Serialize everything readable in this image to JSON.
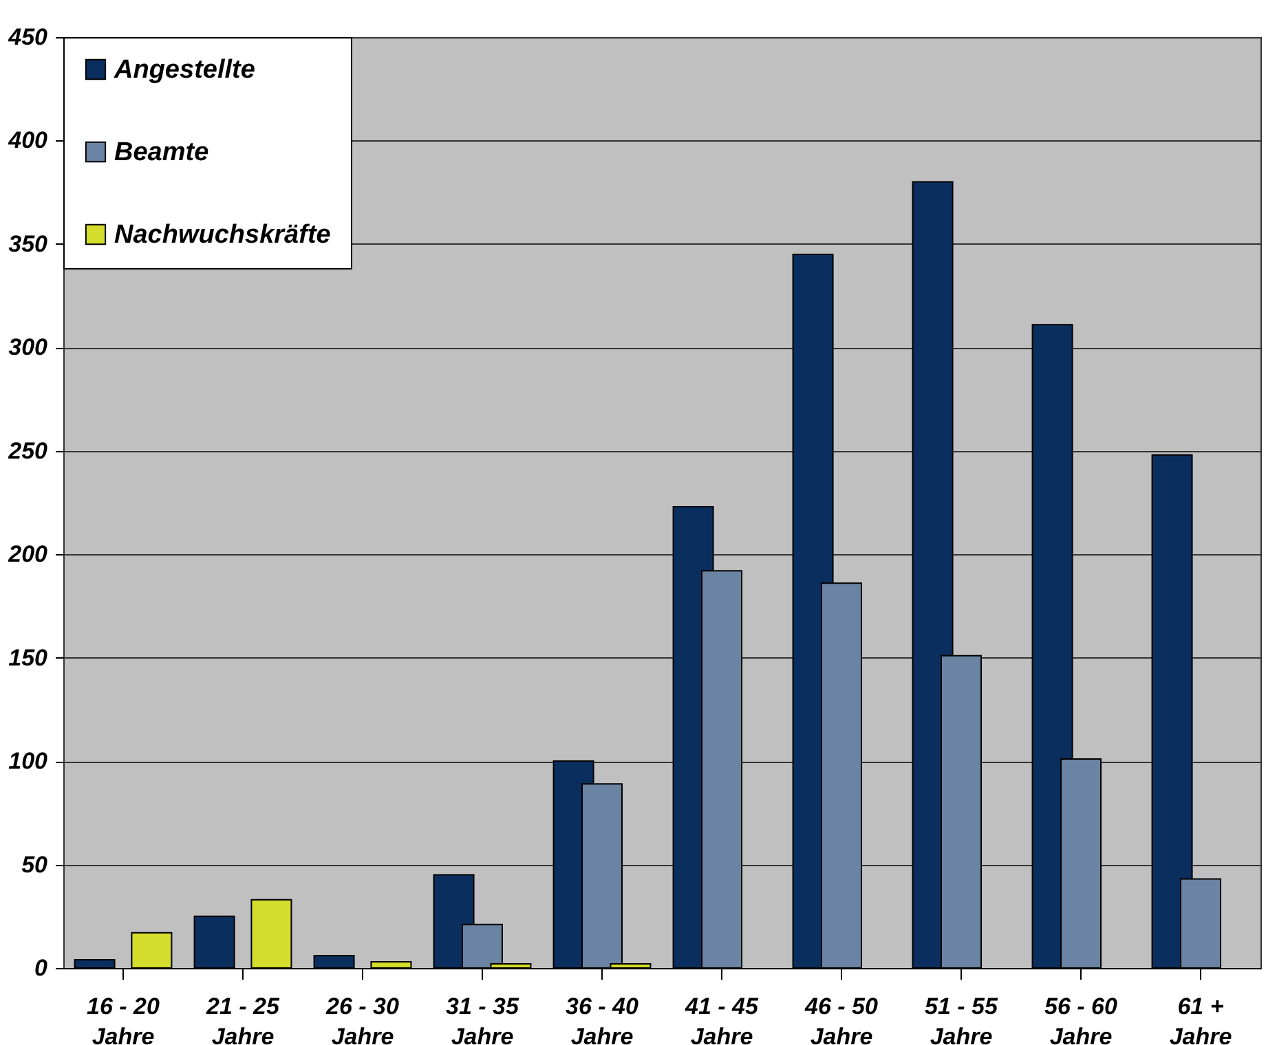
{
  "chart_data": {
    "type": "bar",
    "categories": [
      "16 - 20\nJahre",
      "21 - 25\nJahre",
      "26 - 30\nJahre",
      "31 - 35\nJahre",
      "36 - 40\nJahre",
      "41 - 45\nJahre",
      "46 - 50\nJahre",
      "51 - 55\nJahre",
      "56 - 60\nJahre",
      "61 +\nJahre"
    ],
    "series": [
      {
        "name": "Angestellte",
        "color": "#0a2f5f",
        "values": [
          4,
          25,
          6,
          45,
          100,
          223,
          345,
          380,
          311,
          248
        ]
      },
      {
        "name": "Beamte",
        "color": "#6b84a3",
        "values": [
          null,
          null,
          null,
          21,
          89,
          192,
          186,
          151,
          101,
          43
        ]
      },
      {
        "name": "Nachwuchskräfte",
        "color": "#d4dd2c",
        "values": [
          17,
          33,
          3,
          2,
          2,
          null,
          null,
          null,
          null,
          null
        ]
      }
    ],
    "ylim": [
      0,
      450
    ],
    "yticks": [
      0,
      50,
      100,
      150,
      200,
      250,
      300,
      350,
      400,
      450
    ],
    "grid": "y",
    "legend": "top left"
  }
}
